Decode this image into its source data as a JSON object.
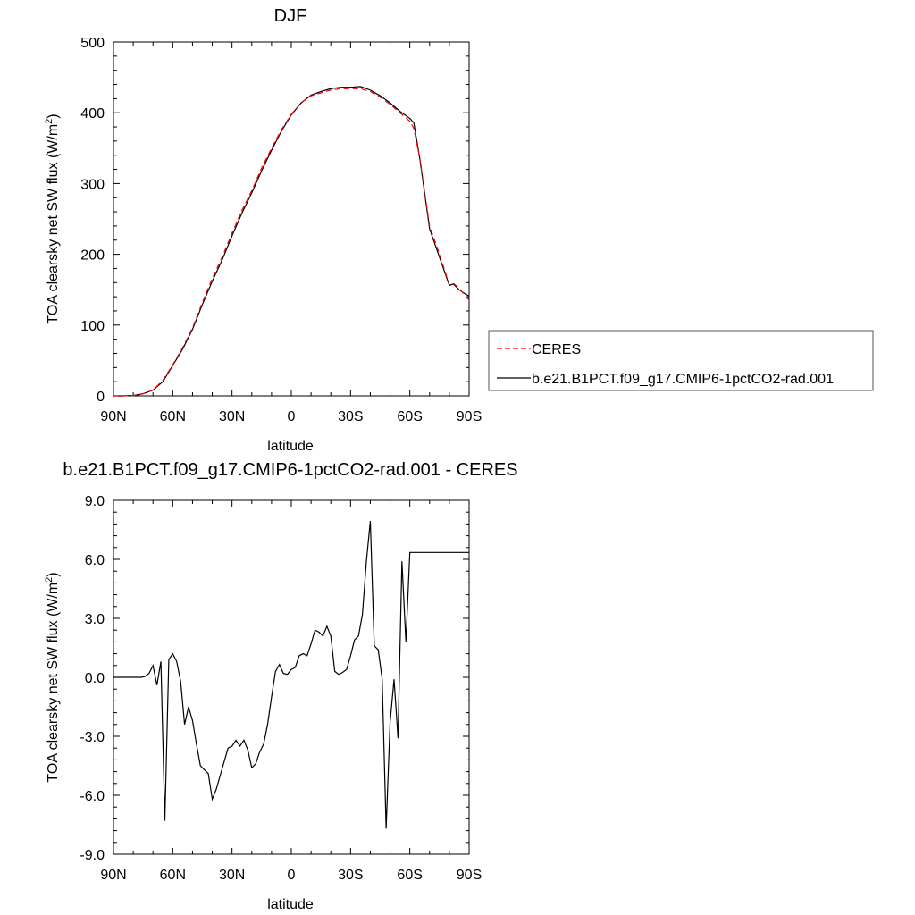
{
  "chart_data": [
    {
      "type": "line",
      "title": "DJF",
      "xlabel": "latitude",
      "ylabel": "TOA clearsky net SW flux (W/m²)",
      "xlim": [
        90,
        -90
      ],
      "ylim": [
        0,
        500
      ],
      "x_tick_labels": [
        "90N",
        "60N",
        "30N",
        "0",
        "30S",
        "60S",
        "90S"
      ],
      "x_tick_values": [
        90,
        60,
        30,
        0,
        -30,
        -60,
        -90
      ],
      "y_tick_values": [
        0,
        100,
        200,
        300,
        400,
        500
      ],
      "y_tick_labels": [
        "0",
        "100",
        "200",
        "300",
        "400",
        "500"
      ],
      "legend": {
        "placement": "right",
        "entries": [
          "CERES",
          "b.e21.B1PCT.f09_g17.CMIP6-1pctCO2-rad.001"
        ]
      },
      "series": [
        {
          "name": "CERES",
          "color": "#ff0000",
          "dash": "dashed",
          "x": [
            90,
            85,
            80,
            75,
            70,
            65,
            60,
            55,
            50,
            45,
            40,
            35,
            30,
            25,
            20,
            15,
            10,
            5,
            0,
            -5,
            -10,
            -15,
            -20,
            -25,
            -30,
            -35,
            -40,
            -45,
            -50,
            -55,
            -60,
            -62,
            -65,
            -70,
            -75,
            -80,
            -82,
            -85,
            -88,
            -90
          ],
          "values": [
            0,
            0,
            0.5,
            3,
            8,
            22,
            44,
            68,
            96,
            132,
            166,
            196,
            230,
            262,
            290,
            322,
            350,
            376,
            398,
            414,
            424,
            428,
            432,
            434,
            434,
            434,
            430,
            422,
            412,
            400,
            388,
            378,
            336,
            240,
            200,
            157,
            159,
            152,
            142,
            135
          ]
        },
        {
          "name": "b.e21.B1PCT.f09_g17.CMIP6-1pctCO2-rad.001",
          "color": "#000000",
          "dash": "solid",
          "x": [
            90,
            85,
            80,
            75,
            70,
            65,
            60,
            55,
            50,
            45,
            40,
            35,
            30,
            25,
            20,
            15,
            10,
            5,
            0,
            -5,
            -10,
            -15,
            -20,
            -25,
            -30,
            -35,
            -40,
            -45,
            -50,
            -55,
            -60,
            -62,
            -65,
            -70,
            -75,
            -80,
            -82,
            -85,
            -88,
            -90
          ],
          "values": [
            0,
            0,
            0.5,
            3,
            8,
            20,
            43,
            66,
            94,
            129,
            162,
            192,
            226,
            258,
            287,
            318,
            347,
            374,
            397,
            414,
            425,
            430,
            434,
            436,
            436,
            437,
            432,
            424,
            414,
            402,
            392,
            386,
            336,
            236,
            196,
            156,
            158,
            150,
            144,
            141
          ]
        }
      ]
    },
    {
      "type": "line",
      "title": "b.e21.B1PCT.f09_g17.CMIP6-1pctCO2-rad.001 - CERES",
      "xlabel": "latitude",
      "ylabel": "TOA clearsky net SW flux (W/m²)",
      "xlim": [
        90,
        -90
      ],
      "ylim": [
        -9,
        9
      ],
      "x_tick_labels": [
        "90N",
        "60N",
        "30N",
        "0",
        "30S",
        "60S",
        "90S"
      ],
      "x_tick_values": [
        90,
        60,
        30,
        0,
        -30,
        -60,
        -90
      ],
      "y_tick_values": [
        -9,
        -6,
        -3,
        0,
        3,
        6,
        9
      ],
      "y_tick_labels": [
        "-9.0",
        "-6.0",
        "-3.0",
        "0.0",
        "3.0",
        "6.0",
        "9.0"
      ],
      "series": [
        {
          "name": "b.e21.B1PCT.f09_g17.CMIP6-1pctCO2-rad.001 - CERES",
          "color": "#000000",
          "dash": "solid",
          "x": [
            90,
            88,
            86,
            84,
            82,
            80,
            78,
            76,
            74,
            72,
            70,
            68,
            66,
            64,
            62,
            60,
            58,
            56,
            54,
            52,
            50,
            48,
            46,
            44,
            42,
            40,
            38,
            36,
            34,
            32,
            30,
            28,
            26,
            24,
            22,
            20,
            18,
            16,
            14,
            12,
            10,
            8,
            6,
            4,
            2,
            0,
            -2,
            -4,
            -6,
            -8,
            -10,
            -12,
            -14,
            -16,
            -18,
            -20,
            -22,
            -24,
            -26,
            -28,
            -30,
            -32,
            -34,
            -36,
            -38,
            -40,
            -42,
            -44,
            -46,
            -48,
            -50,
            -52,
            -54,
            -56,
            -58,
            -60,
            -62,
            -64,
            -66,
            -68,
            -70,
            -72,
            -74,
            -76,
            -78,
            -80,
            -82,
            -84,
            -86,
            -88,
            -90
          ],
          "values": [
            0,
            0,
            0,
            0,
            0,
            0,
            0,
            0,
            0.05,
            0.2,
            0.6,
            -0.4,
            0.8,
            -7.3,
            0.9,
            1.2,
            0.8,
            -0.2,
            -2.4,
            -1.5,
            -2.2,
            -3.4,
            -4.5,
            -4.7,
            -4.9,
            -6.2,
            -5.7,
            -5.0,
            -4.3,
            -3.6,
            -3.5,
            -3.2,
            -3.5,
            -3.2,
            -3.7,
            -4.6,
            -4.4,
            -3.8,
            -3.4,
            -2.4,
            -1.0,
            0.3,
            0.65,
            0.2,
            0.15,
            0.4,
            0.5,
            1.1,
            1.2,
            1.1,
            1.7,
            2.4,
            2.3,
            2.1,
            2.6,
            2.1,
            0.3,
            0.15,
            0.25,
            0.4,
            1.1,
            1.9,
            2.1,
            3.2,
            5.9,
            7.95,
            1.6,
            1.4,
            -0.1,
            -7.7,
            -2.3,
            -0.1,
            -3.1,
            5.9,
            1.8,
            6.35,
            6.35,
            6.35,
            6.35,
            6.35,
            6.35,
            6.35,
            6.35,
            6.35,
            6.35,
            6.35,
            6.35,
            6.35,
            6.35,
            6.35,
            6.35
          ]
        }
      ]
    }
  ]
}
